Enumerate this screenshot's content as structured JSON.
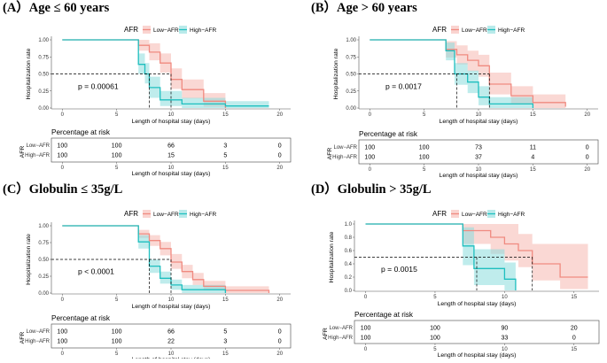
{
  "colors": {
    "low": "#F08A80",
    "high": "#1FBFBF",
    "low_band": "#F6B8B0",
    "high_band": "#8ADCDC"
  },
  "chart_data": [
    {
      "type": "line",
      "panel_title": "(A）Age ≤ 60 years",
      "legend_title": "AFR",
      "legend": [
        "Low−AFR",
        "High−AFR"
      ],
      "xlabel": "Length of hospital stay (days)",
      "ylabel": "Hospitalization rate",
      "xlim": [
        -1,
        21
      ],
      "ylim": [
        0,
        1
      ],
      "xticks": [
        "0",
        "5",
        "10",
        "15",
        "20"
      ],
      "yticks": [
        "0.00",
        "0.25",
        "0.50",
        "0.75",
        "1.00"
      ],
      "p_value": "p = 0.00061",
      "median_marks": [
        8,
        10
      ],
      "series": [
        {
          "name": "Low−AFR",
          "x": [
            0,
            7,
            8,
            9,
            10,
            11,
            13,
            15
          ],
          "y": [
            1.0,
            0.92,
            0.82,
            0.66,
            0.42,
            0.27,
            0.1,
            0.0
          ],
          "lower": [
            1.0,
            0.84,
            0.7,
            0.52,
            0.28,
            0.14,
            0.02,
            0.0
          ],
          "upper": [
            1.0,
            1.0,
            0.95,
            0.8,
            0.58,
            0.42,
            0.22,
            0.08
          ]
        },
        {
          "name": "High−AFR",
          "x": [
            0,
            7,
            7.6,
            8,
            9,
            11,
            15,
            19
          ],
          "y": [
            1.0,
            0.64,
            0.5,
            0.3,
            0.12,
            0.06,
            0.03,
            0.03
          ],
          "lower": [
            1.0,
            0.5,
            0.36,
            0.15,
            0.03,
            0.0,
            0.0,
            0.0
          ],
          "upper": [
            1.0,
            0.8,
            0.66,
            0.46,
            0.25,
            0.15,
            0.1,
            0.1
          ]
        }
      ],
      "risk_table": {
        "title": "Percentage at risk",
        "ylabel": "AFR",
        "rows": [
          {
            "label": "Low−AFR",
            "values": [
              "100",
              "100",
              "66",
              "3",
              "0"
            ]
          },
          {
            "label": "High−AFR",
            "values": [
              "100",
              "100",
              "15",
              "5",
              "0"
            ]
          }
        ]
      }
    },
    {
      "type": "line",
      "panel_title": "(B）Age > 60 years",
      "legend_title": "AFR",
      "legend": [
        "Low−AFR",
        "High−AFR"
      ],
      "xlabel": "Length of hospital stay (days)",
      "ylabel": "Hospitalization rate",
      "xlim": [
        -1,
        21
      ],
      "ylim": [
        0,
        1
      ],
      "xticks": [
        "0",
        "5",
        "10",
        "15",
        "20"
      ],
      "yticks": [
        "0.00",
        "0.25",
        "0.50",
        "0.75",
        "1.00"
      ],
      "p_value": "p = 0.0017",
      "median_marks": [
        8,
        11
      ],
      "series": [
        {
          "name": "Low−AFR",
          "x": [
            0,
            7,
            8,
            9,
            10,
            11,
            13,
            15,
            18
          ],
          "y": [
            1.0,
            0.86,
            0.78,
            0.7,
            0.62,
            0.35,
            0.18,
            0.08,
            0.02
          ],
          "lower": [
            1.0,
            0.74,
            0.64,
            0.54,
            0.46,
            0.2,
            0.06,
            0.0,
            0.0
          ],
          "upper": [
            1.0,
            0.98,
            0.92,
            0.84,
            0.78,
            0.52,
            0.32,
            0.2,
            0.12
          ]
        },
        {
          "name": "High−AFR",
          "x": [
            0,
            7,
            7.8,
            9,
            10,
            11,
            15
          ],
          "y": [
            1.0,
            0.84,
            0.5,
            0.38,
            0.16,
            0.06,
            0.0
          ],
          "lower": [
            1.0,
            0.7,
            0.34,
            0.22,
            0.04,
            0.0,
            0.0
          ],
          "upper": [
            1.0,
            0.96,
            0.66,
            0.55,
            0.32,
            0.16,
            0.0
          ]
        }
      ],
      "risk_table": {
        "title": "Percentage at risk",
        "ylabel": "AFR",
        "rows": [
          {
            "label": "Low−AFR",
            "values": [
              "100",
              "100",
              "73",
              "11",
              "0"
            ]
          },
          {
            "label": "High−AFR",
            "values": [
              "100",
              "100",
              "37",
              "4",
              "0"
            ]
          }
        ]
      }
    },
    {
      "type": "line",
      "panel_title": "(C）Globulin ≤ 35g/L",
      "legend_title": "AFR",
      "legend": [
        "Low−AFR",
        "High−AFR"
      ],
      "xlabel": "Length of hospital stay (days)",
      "ylabel": "Hospitalization rate",
      "xlim": [
        -1,
        21
      ],
      "ylim": [
        0,
        1
      ],
      "xticks": [
        "0",
        "5",
        "10",
        "15",
        "20"
      ],
      "yticks": [
        "0.00",
        "0.25",
        "0.50",
        "0.75",
        "1.00"
      ],
      "p_value": "p < 0.0001",
      "median_marks": [
        8,
        10
      ],
      "series": [
        {
          "name": "Low−AFR",
          "x": [
            0,
            7,
            8,
            9,
            10,
            11,
            12,
            13,
            15,
            19
          ],
          "y": [
            1.0,
            0.88,
            0.78,
            0.66,
            0.46,
            0.32,
            0.2,
            0.1,
            0.04,
            0.0
          ],
          "lower": [
            1.0,
            0.82,
            0.7,
            0.56,
            0.36,
            0.22,
            0.12,
            0.04,
            0.0,
            0.0
          ],
          "upper": [
            1.0,
            0.94,
            0.86,
            0.76,
            0.58,
            0.42,
            0.3,
            0.18,
            0.1,
            0.06
          ]
        },
        {
          "name": "High−AFR",
          "x": [
            0,
            7,
            8,
            9,
            10,
            11,
            15
          ],
          "y": [
            1.0,
            0.76,
            0.4,
            0.22,
            0.12,
            0.05,
            0.0
          ],
          "lower": [
            1.0,
            0.66,
            0.3,
            0.14,
            0.05,
            0.0,
            0.0
          ],
          "upper": [
            1.0,
            0.86,
            0.5,
            0.32,
            0.2,
            0.12,
            0.0
          ]
        }
      ],
      "risk_table": {
        "title": "Percentage at risk",
        "ylabel": "AFR",
        "rows": [
          {
            "label": "Low−AFR",
            "values": [
              "100",
              "100",
              "66",
              "5",
              "0"
            ]
          },
          {
            "label": "High−AFR",
            "values": [
              "100",
              "100",
              "22",
              "3",
              "0"
            ]
          }
        ]
      }
    },
    {
      "type": "line",
      "panel_title": "(D）Globulin > 35g/L",
      "legend_title": "AFR",
      "legend": [
        "Low−AFR",
        "High−AFR"
      ],
      "xlabel": "Length of hospital stay (days)",
      "ylabel": "Hospitalization rate",
      "xlim": [
        -0.8,
        16.8
      ],
      "ylim": [
        0,
        1
      ],
      "xticks": [
        "0",
        "5",
        "10",
        "15"
      ],
      "yticks": [
        "0.0",
        "0.2",
        "0.4",
        "0.6",
        "0.8",
        "1.0"
      ],
      "p_value": "p = 0.0015",
      "median_marks": [
        8,
        12
      ],
      "series": [
        {
          "name": "Low−AFR",
          "x": [
            0,
            7,
            9,
            10,
            11,
            12,
            14,
            16
          ],
          "y": [
            1.0,
            0.9,
            0.8,
            0.7,
            0.6,
            0.4,
            0.2,
            0.2
          ],
          "lower": [
            1.0,
            0.7,
            0.55,
            0.45,
            0.35,
            0.15,
            0.02,
            0.02
          ],
          "upper": [
            1.0,
            1.0,
            1.0,
            1.0,
            0.85,
            0.7,
            0.7,
            0.7
          ]
        },
        {
          "name": "High−AFR",
          "x": [
            0,
            7,
            7.8,
            10,
            10.8
          ],
          "y": [
            1.0,
            0.67,
            0.33,
            0.17,
            0.0
          ],
          "lower": [
            1.0,
            0.38,
            0.08,
            0.0,
            0.0
          ],
          "upper": [
            1.0,
            0.95,
            0.62,
            0.42,
            0.0
          ]
        }
      ],
      "risk_table": {
        "title": "Percentage at risk",
        "ylabel": "AFR",
        "rows": [
          {
            "label": "Low−AFR",
            "values": [
              "100",
              "100",
              "90",
              "20"
            ]
          },
          {
            "label": "High−AFR",
            "values": [
              "100",
              "100",
              "33",
              "0"
            ]
          }
        ]
      }
    }
  ]
}
